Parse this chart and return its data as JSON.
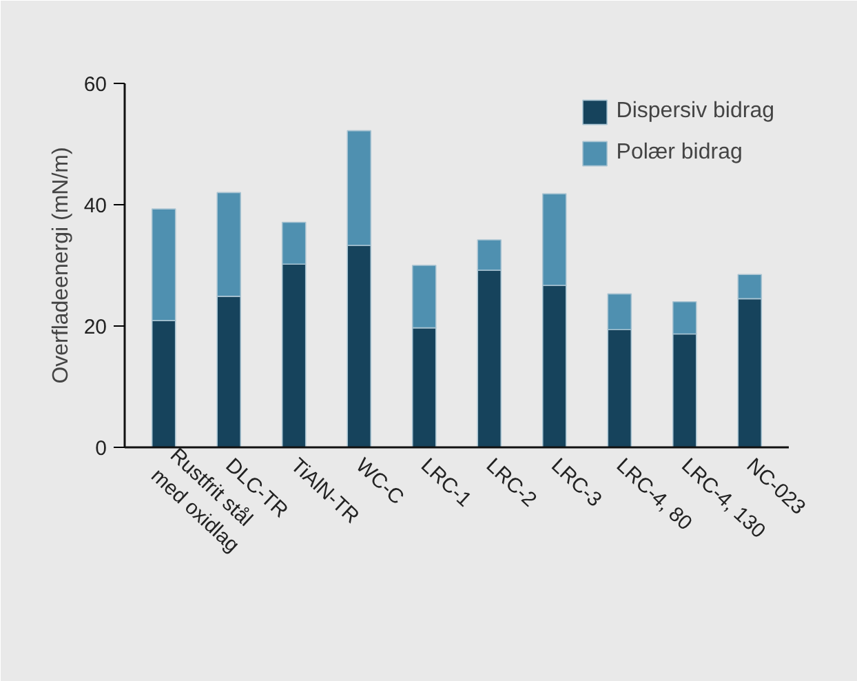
{
  "chart_data": {
    "type": "bar",
    "stacked": true,
    "ylabel": "Overfladeenergi (mN/m)",
    "categories": [
      "Rustfrit stål\nmed oxidlag",
      "DLC-TR",
      "TiAlN-TR",
      "WC-C",
      "LRC-1",
      "LRC-2",
      "LRC-3",
      "LRC-4, 80",
      "LRC-4, 130",
      "NC-023"
    ],
    "series": [
      {
        "name": "Dispersiv bidrag",
        "color": "#16435c",
        "values": [
          20.9,
          24.9,
          30.2,
          33.3,
          19.7,
          29.2,
          26.7,
          19.4,
          18.7,
          24.5
        ]
      },
      {
        "name": "Polær bidrag",
        "color": "#4f90b0",
        "values": [
          18.4,
          17.1,
          6.9,
          18.9,
          10.3,
          5.0,
          15.1,
          5.9,
          5.3,
          4.0
        ]
      }
    ],
    "ylim": [
      0,
      60
    ],
    "yticks": [
      0,
      20,
      40,
      60
    ],
    "legend": "top right"
  }
}
